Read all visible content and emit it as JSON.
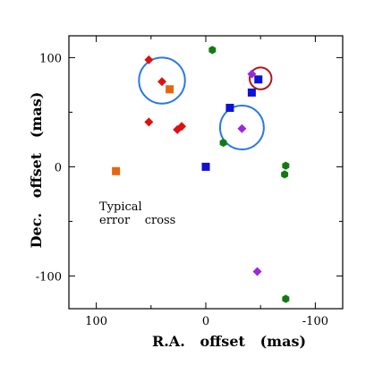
{
  "chart_data": {
    "type": "scatter",
    "title": "",
    "xlabel": "R.A.   offset   (mas)",
    "ylabel": "Dec.   offset   (mas)",
    "xlim": [
      125,
      -125
    ],
    "ylim": [
      -130,
      120
    ],
    "x_ticks": [
      100,
      0,
      -100
    ],
    "x_tick_labels": [
      "100",
      "0",
      "-100"
    ],
    "y_ticks": [
      100,
      0,
      -100
    ],
    "y_tick_labels": [
      "100",
      "0",
      "-100"
    ],
    "grid": false,
    "annotation": [
      "Typical",
      "error    cross"
    ],
    "colors": {
      "red": "#dd1111",
      "orange": "#e8650f",
      "blue": "#1010d8",
      "purple": "#9a28e0",
      "green": "#127a12",
      "circle_blue": "#2878e8",
      "circle_red": "#b01818"
    },
    "series": [
      {
        "marker": "diamond",
        "color": "red",
        "points": [
          [
            52,
            98
          ],
          [
            40,
            78
          ],
          [
            52,
            41
          ],
          [
            26,
            34
          ],
          [
            22,
            37
          ]
        ]
      },
      {
        "marker": "square",
        "color": "orange",
        "points": [
          [
            33,
            71
          ],
          [
            82,
            -4
          ]
        ]
      },
      {
        "marker": "square",
        "color": "blue",
        "points": [
          [
            -48,
            80
          ],
          [
            -42,
            68
          ],
          [
            -22,
            54
          ],
          [
            0,
            0
          ]
        ]
      },
      {
        "marker": "diamond",
        "color": "purple",
        "points": [
          [
            -42,
            85
          ],
          [
            -33,
            35
          ],
          [
            -47,
            -96
          ]
        ]
      },
      {
        "marker": "hexagon",
        "color": "green",
        "points": [
          [
            -6,
            107
          ],
          [
            -16,
            22
          ],
          [
            -73,
            1
          ],
          [
            -72,
            -7
          ],
          [
            -73,
            -121
          ]
        ]
      }
    ],
    "circles": [
      {
        "center": [
          40,
          79
        ],
        "radius": 21,
        "color": "circle_blue"
      },
      {
        "center": [
          -33,
          36
        ],
        "radius": 20,
        "color": "circle_blue"
      },
      {
        "center": [
          -50,
          81
        ],
        "radius": 10,
        "color": "circle_red"
      }
    ]
  }
}
